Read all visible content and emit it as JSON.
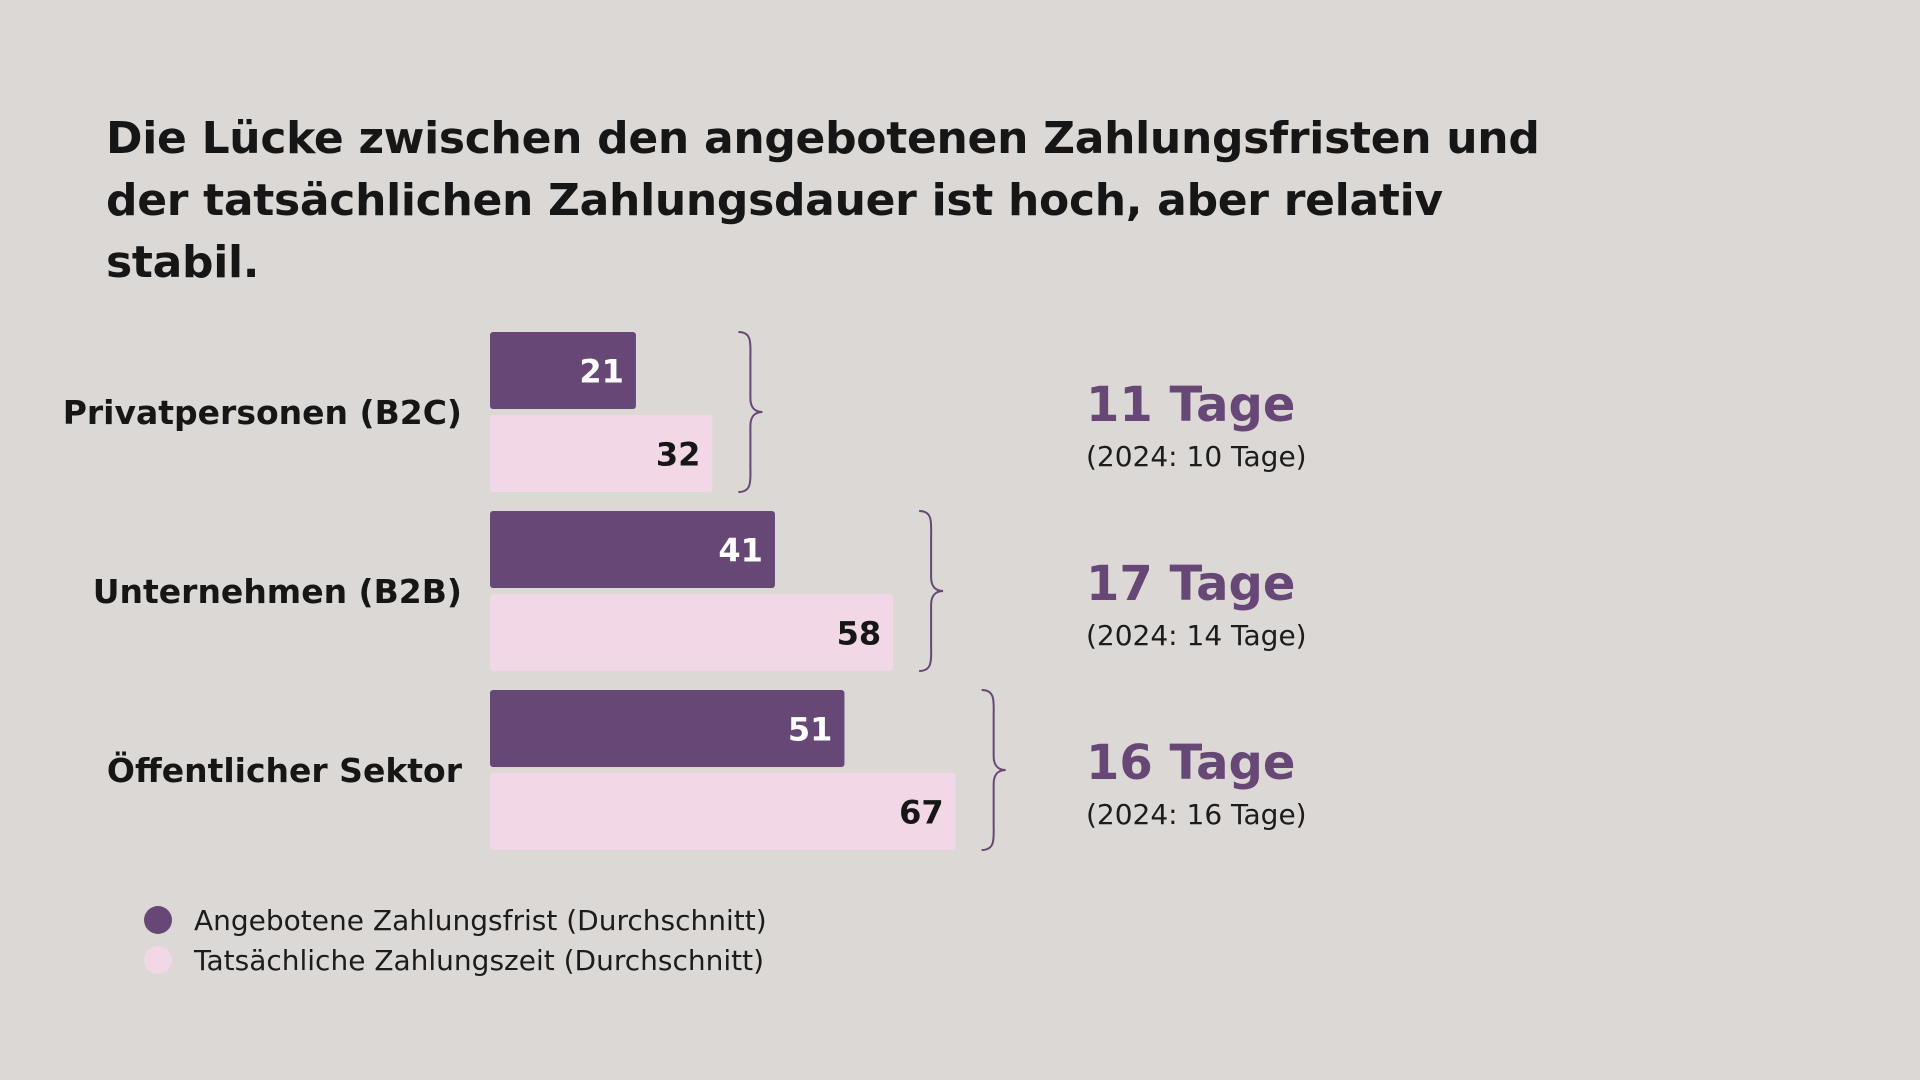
{
  "title": {
    "line1": "Die Lücke zwischen den angebotenen Zahlungsfristen und",
    "line2": "der tatsächlichen Zahlungsdauer ist hoch, aber relativ stabil."
  },
  "colors": {
    "offered": "#674776",
    "actual": "#f2d8e6",
    "gap_text": "#674776",
    "background": "#dcd8d5"
  },
  "chart_data": {
    "type": "bar",
    "orientation": "horizontal",
    "categories": [
      "Privatpersonen (B2C)",
      "Unternehmen (B2B)",
      "Öffentlicher Sektor"
    ],
    "series": [
      {
        "name": "Angebotene Zahlungsfrist (Durchschnitt)",
        "values": [
          21,
          41,
          51
        ]
      },
      {
        "name": "Tatsächliche Zahlungszeit (Durchschnitt)",
        "values": [
          32,
          58,
          67
        ]
      }
    ],
    "annotations": [
      {
        "gap": "11 Tage",
        "previous": "(2024: 10 Tage)"
      },
      {
        "gap": "17 Tage",
        "previous": "(2024: 14 Tage)"
      },
      {
        "gap": "16 Tage",
        "previous": "(2024: 16 Tage)"
      }
    ],
    "legend_position": "bottom-left",
    "grid": false
  }
}
